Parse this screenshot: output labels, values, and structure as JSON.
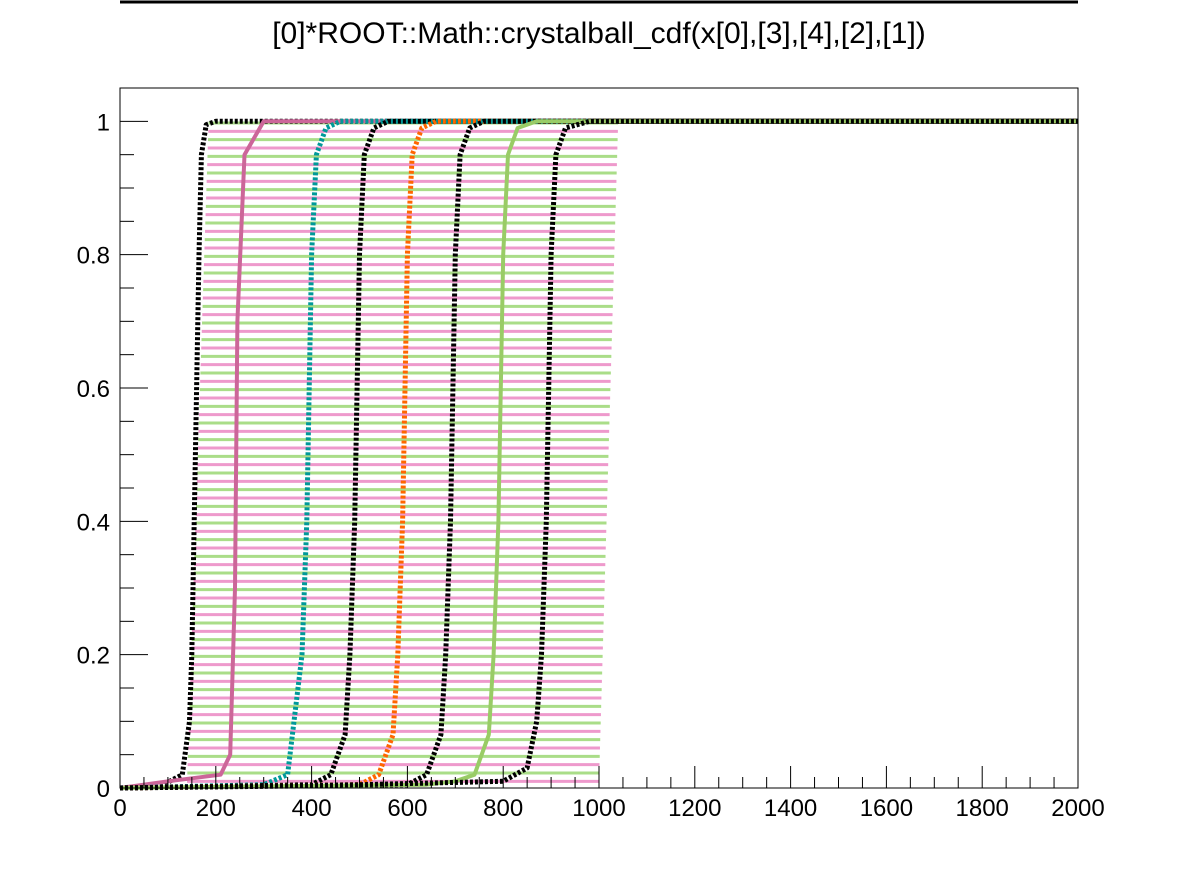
{
  "chart_data": {
    "type": "line",
    "title": "[0]*ROOT::Math::crystalball_cdf(x[0],[3],[4],[2],[1])",
    "xlabel": "",
    "ylabel": "",
    "xlim": [
      0,
      2000
    ],
    "ylim": [
      0,
      1.05
    ],
    "x_ticks": [
      0,
      200,
      400,
      600,
      800,
      1000,
      1200,
      1400,
      1600,
      1800,
      2000
    ],
    "x_tick_labels": [
      "0",
      "200",
      "400",
      "600",
      "800",
      "1000",
      "1200",
      "1400",
      "1600",
      "1800",
      "2000"
    ],
    "y_ticks": [
      0,
      0.2,
      0.4,
      0.6,
      0.8,
      1
    ],
    "y_tick_labels": [
      "0",
      "0.2",
      "0.4",
      "0.6",
      "0.8",
      "1"
    ],
    "grid": false,
    "legend": "none",
    "band": {
      "description": "dense horizontal pink and light-green lines filling region between curves",
      "x_range_low": [
        140,
        185
      ],
      "x_range_high": [
        1000,
        1040
      ],
      "y_range": [
        0.01,
        1.0
      ],
      "colors": [
        "#ee99cc",
        "#aadd88"
      ]
    },
    "series": [
      {
        "color": "#000000",
        "style": "dotted",
        "x": [
          0,
          90,
          130,
          145,
          150,
          155,
          160,
          165,
          170,
          180,
          200,
          2000
        ],
        "y": [
          0,
          0.005,
          0.02,
          0.1,
          0.2,
          0.4,
          0.6,
          0.8,
          0.95,
          0.995,
          1,
          1
        ]
      },
      {
        "color": "#cc6699",
        "style": "solid",
        "x": [
          0,
          100,
          210,
          230,
          240,
          245,
          260,
          280,
          300,
          2000
        ],
        "y": [
          0,
          0.01,
          0.02,
          0.05,
          0.3,
          0.7,
          0.95,
          0.975,
          1,
          1
        ]
      },
      {
        "color": "#009999",
        "style": "dotted",
        "x": [
          0,
          300,
          350,
          360,
          380,
          390,
          395,
          400,
          410,
          430,
          460,
          2000
        ],
        "y": [
          0,
          0.005,
          0.02,
          0.08,
          0.2,
          0.4,
          0.6,
          0.8,
          0.95,
          0.99,
          1,
          1
        ]
      },
      {
        "color": "#000000",
        "style": "dotted",
        "x": [
          0,
          400,
          440,
          470,
          480,
          490,
          495,
          500,
          510,
          530,
          560,
          2000
        ],
        "y": [
          0,
          0.005,
          0.02,
          0.08,
          0.2,
          0.4,
          0.6,
          0.8,
          0.95,
          0.99,
          1,
          1
        ]
      },
      {
        "color": "#ff6600",
        "style": "dotted",
        "x": [
          0,
          500,
          540,
          570,
          580,
          590,
          595,
          600,
          610,
          630,
          660,
          2000
        ],
        "y": [
          0,
          0.005,
          0.02,
          0.08,
          0.2,
          0.4,
          0.6,
          0.8,
          0.95,
          0.99,
          1,
          1
        ]
      },
      {
        "color": "#000000",
        "style": "dotted",
        "x": [
          0,
          600,
          640,
          670,
          680,
          690,
          695,
          700,
          710,
          730,
          760,
          2000
        ],
        "y": [
          0,
          0.005,
          0.02,
          0.08,
          0.2,
          0.4,
          0.6,
          0.8,
          0.95,
          0.99,
          1,
          1
        ]
      },
      {
        "color": "#99cc66",
        "style": "solid",
        "x": [
          0,
          640,
          700,
          740,
          770,
          780,
          790,
          795,
          800,
          810,
          830,
          870,
          2000
        ],
        "y": [
          0,
          0.005,
          0.01,
          0.02,
          0.08,
          0.2,
          0.4,
          0.6,
          0.8,
          0.95,
          0.99,
          1,
          1
        ]
      },
      {
        "color": "#000000",
        "style": "dotted",
        "x": [
          0,
          500,
          800,
          850,
          870,
          880,
          890,
          895,
          900,
          910,
          930,
          980,
          2000
        ],
        "y": [
          0,
          0.005,
          0.01,
          0.03,
          0.1,
          0.2,
          0.4,
          0.6,
          0.8,
          0.95,
          0.99,
          1,
          1
        ]
      }
    ]
  }
}
